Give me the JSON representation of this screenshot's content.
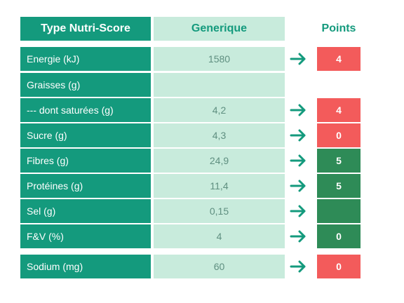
{
  "header": {
    "type_label": "Type Nutri-Score",
    "generic_label": "Generique",
    "points_label": "Points"
  },
  "rows": [
    {
      "label": "Energie (kJ)",
      "value": "1580",
      "arrow": true,
      "points": "4",
      "color": "#f35b5b"
    },
    {
      "label": "Graisses (g)",
      "value": "",
      "arrow": false,
      "points": null,
      "color": null
    },
    {
      "label": "--- dont saturées (g)",
      "value": "4,2",
      "arrow": true,
      "points": "4",
      "color": "#f35b5b"
    },
    {
      "label": "Sucre (g)",
      "value": "4,3",
      "arrow": true,
      "points": "0",
      "color": "#f35b5b"
    },
    {
      "label": "Fibres (g)",
      "value": "24,9",
      "arrow": true,
      "points": "5",
      "color": "#2e8b57"
    },
    {
      "label": "Protéines (g)",
      "value": "11,4",
      "arrow": true,
      "points": "5",
      "color": "#2e8b57"
    },
    {
      "label": "Sel (g)",
      "value": "0,15",
      "arrow": true,
      "points": "",
      "color": "#2e8b57"
    },
    {
      "label": "F&V (%)",
      "value": "4",
      "arrow": true,
      "points": "0",
      "color": "#2e8b57"
    },
    {
      "label": "Sodium (mg)",
      "value": "60",
      "arrow": true,
      "points": "0",
      "color": "#f35b5b"
    }
  ],
  "colors": {
    "primary": "#149a7d",
    "light": "#c8ebdc",
    "red": "#f35b5b",
    "green": "#2e8b57"
  }
}
